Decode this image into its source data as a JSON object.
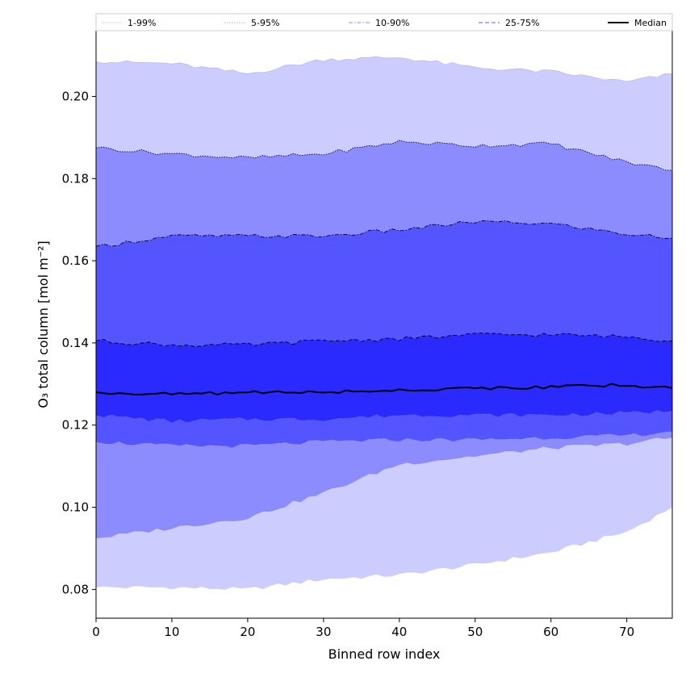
{
  "chart_data": {
    "type": "area",
    "title": "",
    "xlabel": "Binned row index",
    "ylabel": "O₃ total column [mol m⁻²]",
    "xlim": [
      0,
      76
    ],
    "ylim": [
      0.073,
      0.216
    ],
    "xticks": [
      0,
      10,
      20,
      30,
      40,
      50,
      60,
      70
    ],
    "yticks": [
      0.08,
      0.1,
      0.12,
      0.14,
      0.16,
      0.18,
      0.2
    ],
    "ytick_labels": [
      "0.08",
      "0.10",
      "0.12",
      "0.14",
      "0.16",
      "0.18",
      "0.20"
    ],
    "grid": false,
    "legend_position": "top",
    "knot_x": [
      0,
      10,
      20,
      30,
      40,
      50,
      60,
      70,
      76
    ],
    "bands": [
      {
        "name": "1-99%",
        "color": "#ccccff",
        "line_color": "#b0b0ee",
        "line_style": "solid",
        "lower": [
          0.0805,
          0.0805,
          0.08,
          0.0825,
          0.0835,
          0.086,
          0.089,
          0.094,
          0.1
        ],
        "upper": [
          0.2085,
          0.208,
          0.2055,
          0.209,
          0.2095,
          0.207,
          0.206,
          0.2035,
          0.2055
        ]
      },
      {
        "name": "5-95%",
        "color": "#8c8cff",
        "line_color": "#000033",
        "line_style": "dotted",
        "lower": [
          0.0925,
          0.095,
          0.0975,
          0.1035,
          0.1105,
          0.1125,
          0.1145,
          0.1155,
          0.117
        ],
        "upper": [
          0.1875,
          0.186,
          0.185,
          0.186,
          0.189,
          0.188,
          0.1885,
          0.184,
          0.182
        ]
      },
      {
        "name": "10-90%",
        "color": "#5555ff",
        "line_color": "#000022",
        "line_style": "dashdot",
        "lower": [
          0.116,
          0.115,
          0.115,
          0.116,
          0.1165,
          0.1165,
          0.117,
          0.1175,
          0.1185
        ],
        "upper": [
          0.1635,
          0.166,
          0.166,
          0.166,
          0.1675,
          0.1695,
          0.169,
          0.1665,
          0.1655
        ]
      },
      {
        "name": "25-75%",
        "color": "#2a2aff",
        "line_color": "#000011",
        "line_style": "dashed",
        "lower": [
          0.1225,
          0.121,
          0.1215,
          0.1215,
          0.1225,
          0.1225,
          0.1225,
          0.123,
          0.1235
        ],
        "upper": [
          0.1405,
          0.1395,
          0.1395,
          0.1405,
          0.141,
          0.142,
          0.142,
          0.1415,
          0.1405
        ]
      }
    ],
    "median": {
      "name": "Median",
      "color": "#000000",
      "values": [
        0.128,
        0.1275,
        0.128,
        0.128,
        0.1285,
        0.129,
        0.1292,
        0.1298,
        0.129
      ]
    },
    "legend": [
      "1-99%",
      "5-95%",
      "10-90%",
      "25-75%",
      "Median"
    ]
  }
}
